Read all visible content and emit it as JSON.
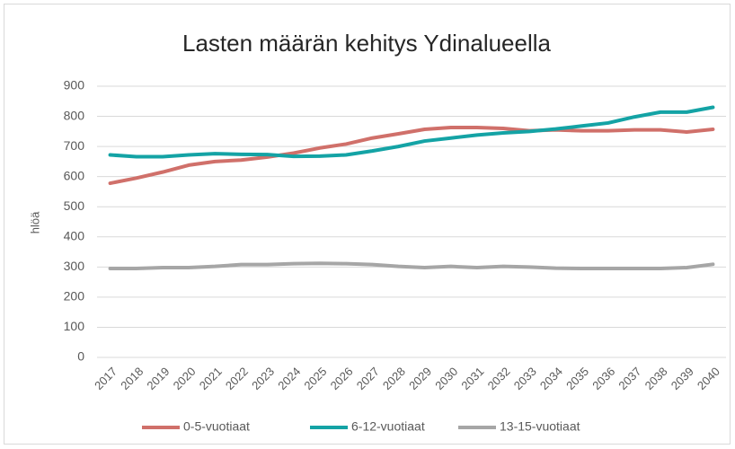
{
  "chart_data": {
    "type": "line",
    "title": "Lasten määrän kehitys Ydinalueella",
    "y_label": "hlöä",
    "categories": [
      "2017",
      "2018",
      "2019",
      "2020",
      "2021",
      "2022",
      "2023",
      "2024",
      "2025",
      "2026",
      "2027",
      "2028",
      "2029",
      "2030",
      "2031",
      "2032",
      "2033",
      "2034",
      "2035",
      "2036",
      "2037",
      "2038",
      "2039",
      "2040"
    ],
    "series": [
      {
        "name": "0-5-vuotiaat",
        "color": "#d0706a",
        "values": [
          578,
          595,
          615,
          638,
          650,
          655,
          665,
          678,
          695,
          708,
          728,
          742,
          757,
          763,
          763,
          760,
          752,
          755,
          752,
          752,
          755,
          755,
          748,
          757
        ]
      },
      {
        "name": "6-12-vuotiaat",
        "color": "#14a3a5",
        "values": [
          672,
          666,
          666,
          672,
          676,
          674,
          673,
          667,
          668,
          672,
          685,
          700,
          718,
          728,
          738,
          745,
          750,
          758,
          768,
          778,
          798,
          814,
          814,
          830
        ]
      },
      {
        "name": "13-15-vuotiaat",
        "color": "#a6a6a6",
        "values": [
          295,
          295,
          298,
          298,
          302,
          308,
          308,
          311,
          312,
          311,
          308,
          302,
          298,
          302,
          298,
          302,
          300,
          296,
          295,
          295,
          295,
          295,
          298,
          309
        ]
      }
    ],
    "ylim": [
      0,
      900
    ],
    "yticks": [
      0,
      100,
      200,
      300,
      400,
      500,
      600,
      700,
      800,
      900
    ],
    "grid": true,
    "legend": "bottom"
  }
}
